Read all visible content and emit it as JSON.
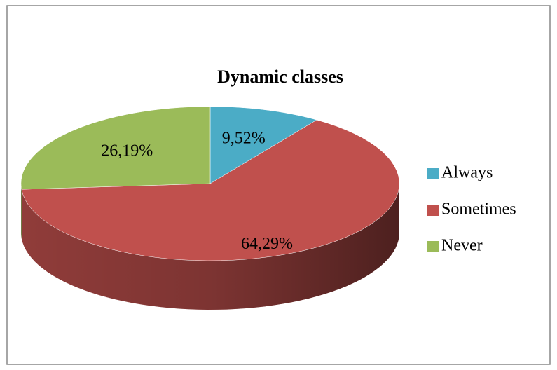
{
  "chart_data": {
    "type": "pie",
    "title": "Dynamic classes",
    "categories": [
      "Always",
      "Sometimes",
      "Never"
    ],
    "values": [
      9.52,
      64.29,
      26.19
    ],
    "value_labels": [
      "9,52%",
      "64,29%",
      "26,19%"
    ],
    "colors": [
      "#4bacc6",
      "#c0504d",
      "#9bbb59"
    ],
    "legend": "right"
  }
}
